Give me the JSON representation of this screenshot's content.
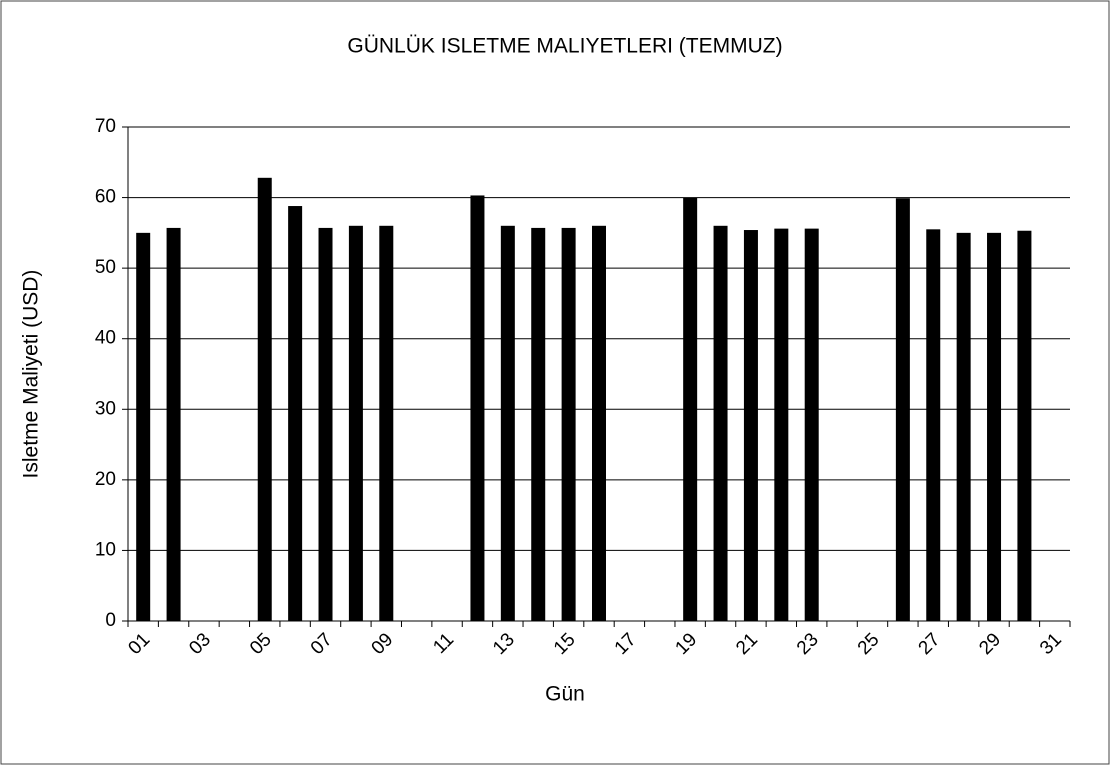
{
  "chart_data": {
    "type": "bar",
    "title": "GÜNLÜK ISLETME MALIYETLERI (TEMMUZ)",
    "x_label": "Gün",
    "y_label": "Isletme Maliyeti (USD)",
    "categories": [
      "01",
      null,
      "03",
      null,
      "05",
      null,
      "07",
      null,
      "09",
      null,
      "11",
      null,
      "13",
      null,
      "15",
      null,
      "17",
      null,
      "19",
      null,
      "21",
      null,
      "23",
      null,
      "25",
      null,
      "27",
      null,
      "29",
      null,
      "31"
    ],
    "values": [
      55,
      55.7,
      0,
      0,
      62.8,
      58.8,
      55.7,
      56,
      56,
      0,
      0,
      60.3,
      56,
      55.7,
      55.7,
      56,
      0,
      0,
      60,
      56,
      55.4,
      55.6,
      55.6,
      0,
      0,
      59.9,
      55.5,
      55,
      55,
      55.3,
      0
    ],
    "color": "#000000",
    "ylim": [
      0,
      70
    ],
    "yticks": [
      0,
      10,
      20,
      30,
      40,
      50,
      60,
      70
    ],
    "grid": true
  }
}
